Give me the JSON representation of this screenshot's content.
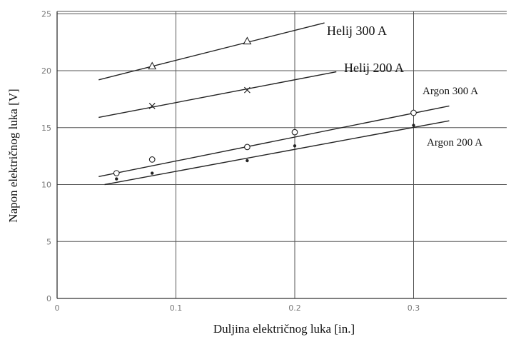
{
  "chart_data": {
    "type": "scatter",
    "title": "",
    "xlabel": "Duljina električnog luka [in.]",
    "ylabel": "Napon električnog luka [V]",
    "xlim": [
      0,
      0.4
    ],
    "ylim": [
      0,
      25
    ],
    "x_ticks": [
      "0",
      "0.1",
      "0.2",
      "0.3"
    ],
    "y_ticks": [
      "0",
      "5",
      "10",
      "15",
      "20",
      "25"
    ],
    "grid": true,
    "series": [
      {
        "name": "Helij 300 A",
        "marker": "triangle",
        "points": [
          [
            0.08,
            20.4
          ],
          [
            0.16,
            22.6
          ]
        ],
        "fit": [
          [
            0.035,
            19.2
          ],
          [
            0.225,
            24.2
          ]
        ]
      },
      {
        "name": "Helij 200 A",
        "marker": "cross",
        "points": [
          [
            0.08,
            16.9
          ],
          [
            0.16,
            18.3
          ]
        ],
        "fit": [
          [
            0.035,
            15.9
          ],
          [
            0.235,
            19.9
          ]
        ]
      },
      {
        "name": "Argon 300 A",
        "marker": "circle",
        "points": [
          [
            0.05,
            11.0
          ],
          [
            0.08,
            12.2
          ],
          [
            0.16,
            13.3
          ],
          [
            0.2,
            14.6
          ],
          [
            0.3,
            16.3
          ]
        ],
        "fit": [
          [
            0.035,
            10.7
          ],
          [
            0.33,
            16.9
          ]
        ]
      },
      {
        "name": "Argon 200 A",
        "marker": "dot",
        "points": [
          [
            0.05,
            10.5
          ],
          [
            0.08,
            11.0
          ],
          [
            0.16,
            12.1
          ],
          [
            0.2,
            13.4
          ],
          [
            0.3,
            15.2
          ]
        ],
        "fit": [
          [
            0.04,
            10.0
          ],
          [
            0.33,
            15.6
          ]
        ]
      }
    ]
  }
}
